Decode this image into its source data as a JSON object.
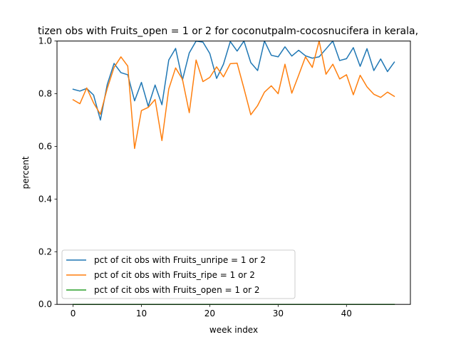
{
  "chart_data": {
    "type": "line",
    "title": "tizen obs with Fruits_open = 1 or 2 for coconutpalm-cocosnucifera in kerala,",
    "xlabel": "week index",
    "ylabel": "percent",
    "xlim": [
      -2.35,
      49.35
    ],
    "ylim": [
      0,
      1.0
    ],
    "xticks": [
      0,
      10,
      20,
      30,
      40
    ],
    "yticks": [
      0.0,
      0.2,
      0.4,
      0.6,
      0.8,
      1.0
    ],
    "ytick_labels": [
      "0.0",
      "0.2",
      "0.4",
      "0.6",
      "0.8",
      "1.0"
    ],
    "grid": false,
    "legend_position": "lower-left",
    "x": [
      0,
      1,
      2,
      3,
      4,
      5,
      6,
      7,
      8,
      9,
      10,
      11,
      12,
      13,
      14,
      15,
      16,
      17,
      18,
      19,
      20,
      21,
      22,
      23,
      24,
      25,
      26,
      27,
      28,
      29,
      30,
      31,
      32,
      33,
      34,
      35,
      36,
      37,
      38,
      39,
      40,
      41,
      42,
      43,
      44,
      45,
      46,
      47
    ],
    "series": [
      {
        "name": "pct of cit obs with Fruits_unripe = 1 or 2",
        "color": "#1f77b4",
        "values": [
          0.817,
          0.81,
          0.82,
          0.795,
          0.7,
          0.835,
          0.915,
          0.88,
          0.872,
          0.773,
          0.843,
          0.752,
          0.833,
          0.758,
          0.928,
          0.972,
          0.852,
          0.955,
          1.0,
          0.996,
          0.953,
          0.858,
          0.912,
          0.998,
          0.962,
          1.0,
          0.918,
          0.888,
          1.0,
          0.946,
          0.94,
          0.978,
          0.943,
          0.965,
          0.944,
          0.935,
          0.94,
          0.97,
          1.0,
          0.926,
          0.933,
          0.975,
          0.904,
          0.971,
          0.888,
          0.932,
          0.884,
          0.92
        ]
      },
      {
        "name": "pct of cit obs with Fruits_ripe = 1 or 2",
        "color": "#ff7f0e",
        "values": [
          0.777,
          0.762,
          0.822,
          0.765,
          0.722,
          0.82,
          0.9,
          0.94,
          0.905,
          0.592,
          0.736,
          0.748,
          0.778,
          0.622,
          0.818,
          0.898,
          0.855,
          0.728,
          0.928,
          0.846,
          0.862,
          0.902,
          0.864,
          0.914,
          0.916,
          0.82,
          0.72,
          0.755,
          0.806,
          0.83,
          0.8,
          0.912,
          0.802,
          0.87,
          0.94,
          0.9,
          1.0,
          0.874,
          0.912,
          0.856,
          0.872,
          0.796,
          0.87,
          0.826,
          0.798,
          0.786,
          0.806,
          0.79
        ]
      },
      {
        "name": "pct of cit obs with Fruits_open = 1 or 2",
        "color": "#2ca02c",
        "values": [
          0,
          0,
          0,
          0,
          0,
          0,
          0,
          0,
          0,
          0,
          0,
          0,
          0,
          0,
          0,
          0,
          0,
          0,
          0,
          0,
          0,
          0,
          0,
          0,
          0,
          0,
          0,
          0,
          0,
          0,
          0,
          0,
          0,
          0,
          0,
          0,
          0,
          0,
          0,
          0,
          0,
          0,
          0,
          0,
          0,
          0,
          0,
          0
        ]
      }
    ]
  }
}
